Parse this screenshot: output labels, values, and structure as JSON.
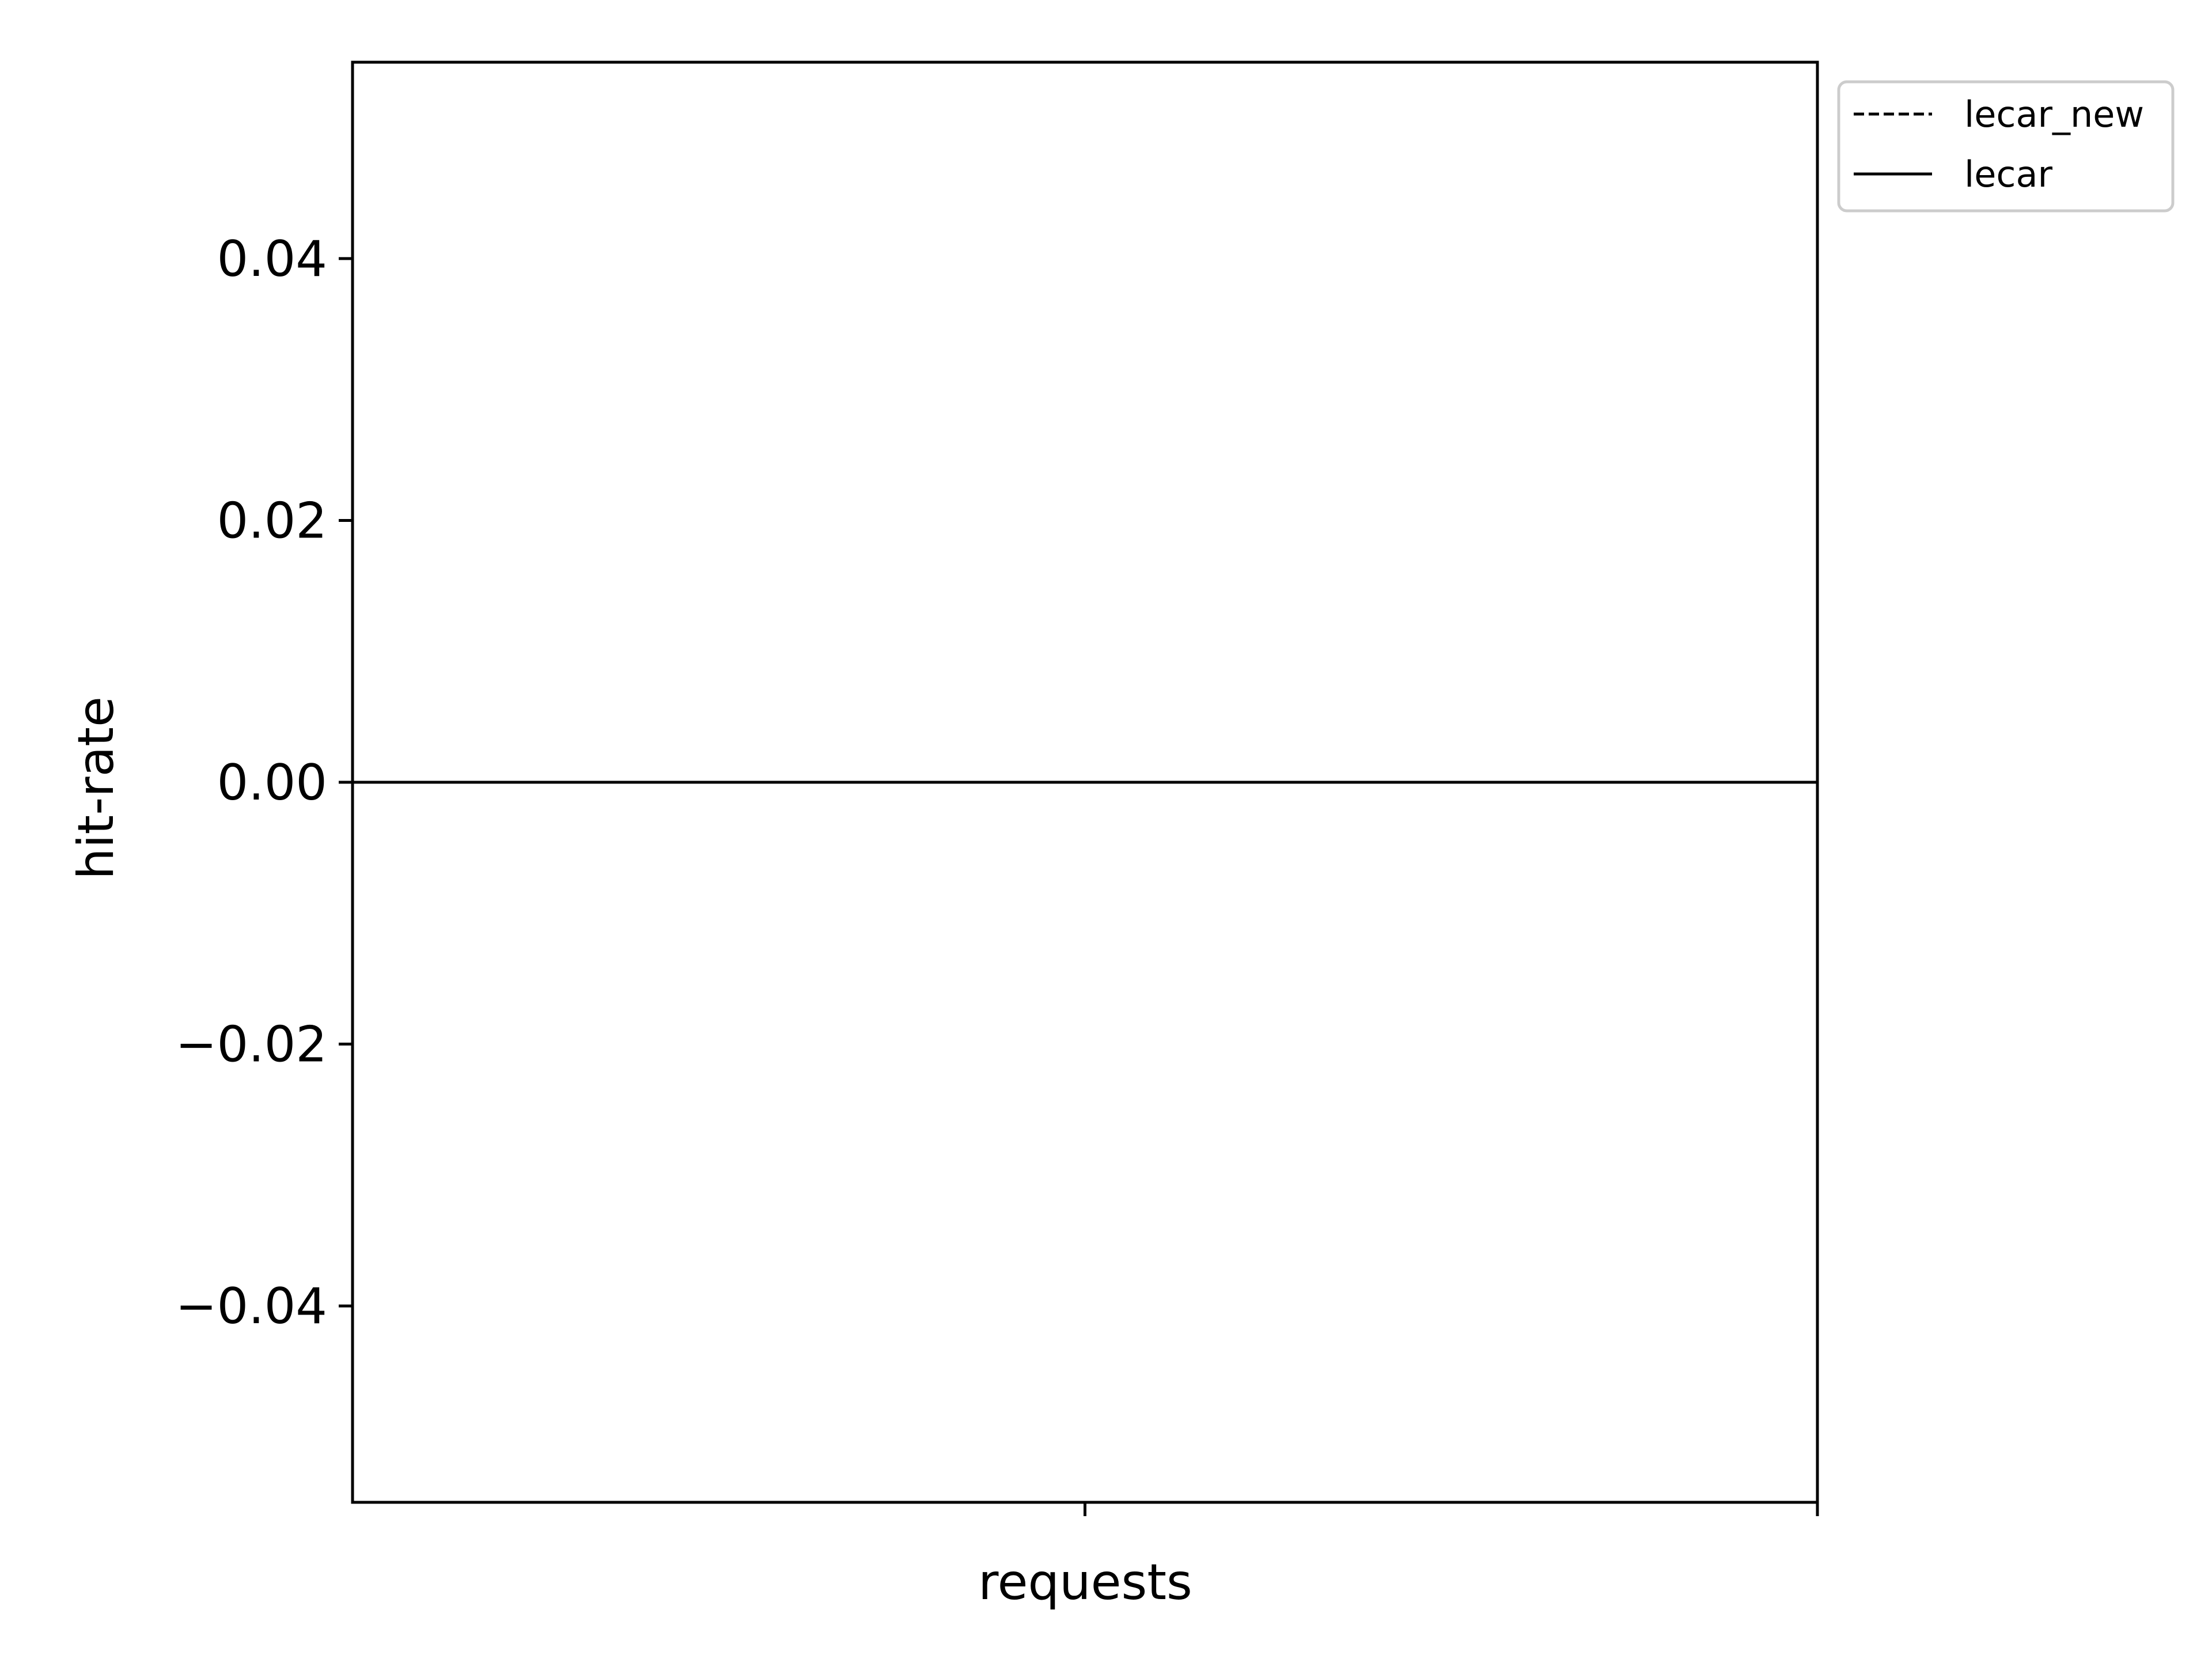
{
  "chart_data": {
    "type": "line",
    "title": "",
    "xlabel": "requests",
    "ylabel": "hit-rate",
    "ylim": [
      -0.055,
      0.055
    ],
    "y_ticks": [
      -0.04,
      -0.02,
      0.0,
      0.02,
      0.04
    ],
    "y_tick_labels": [
      "−0.04",
      "−0.02",
      "0.00",
      "0.02",
      "0.04"
    ],
    "x_ticks_count": 2,
    "grid": false,
    "legend_position": "upper-right-outside",
    "series": [
      {
        "name": "lecar_new",
        "style": "dashed",
        "color": "#000000",
        "values": [
          0,
          0
        ]
      },
      {
        "name": "lecar",
        "style": "solid",
        "color": "#000000",
        "values": [
          0,
          0
        ]
      }
    ]
  }
}
